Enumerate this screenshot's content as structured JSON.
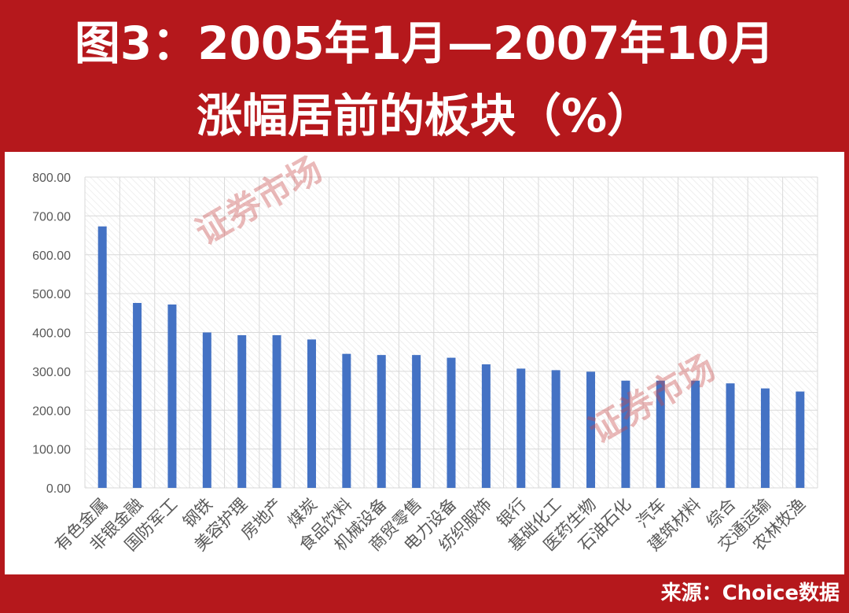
{
  "title": {
    "line1": "图3：2005年1月—2007年10月",
    "line2": "涨幅居前的板块（%）"
  },
  "source": "来源：Choice数据",
  "watermark_text": "证券市场",
  "colors": {
    "frame": "#b5181c",
    "bar": "#4472c4",
    "plot_bg": "#ffffff"
  },
  "chart_data": {
    "type": "bar",
    "categories": [
      "有色金属",
      "非银金融",
      "国防军工",
      "钢铁",
      "美容护理",
      "房地产",
      "煤炭",
      "食品饮料",
      "机械设备",
      "商贸零售",
      "电力设备",
      "纺织服饰",
      "银行",
      "基础化工",
      "医药生物",
      "石油石化",
      "汽车",
      "建筑材料",
      "综合",
      "交通运输",
      "农林牧渔"
    ],
    "values": [
      673,
      476,
      472,
      400,
      393,
      393,
      382,
      345,
      342,
      342,
      335,
      318,
      307,
      303,
      299,
      276,
      276,
      276,
      269,
      256,
      248
    ],
    "ylim": [
      0,
      800
    ],
    "yticks": [
      "0.00",
      "100.00",
      "200.00",
      "300.00",
      "400.00",
      "500.00",
      "600.00",
      "700.00",
      "800.00"
    ],
    "grid": true,
    "title": "",
    "xlabel": "",
    "ylabel": ""
  }
}
